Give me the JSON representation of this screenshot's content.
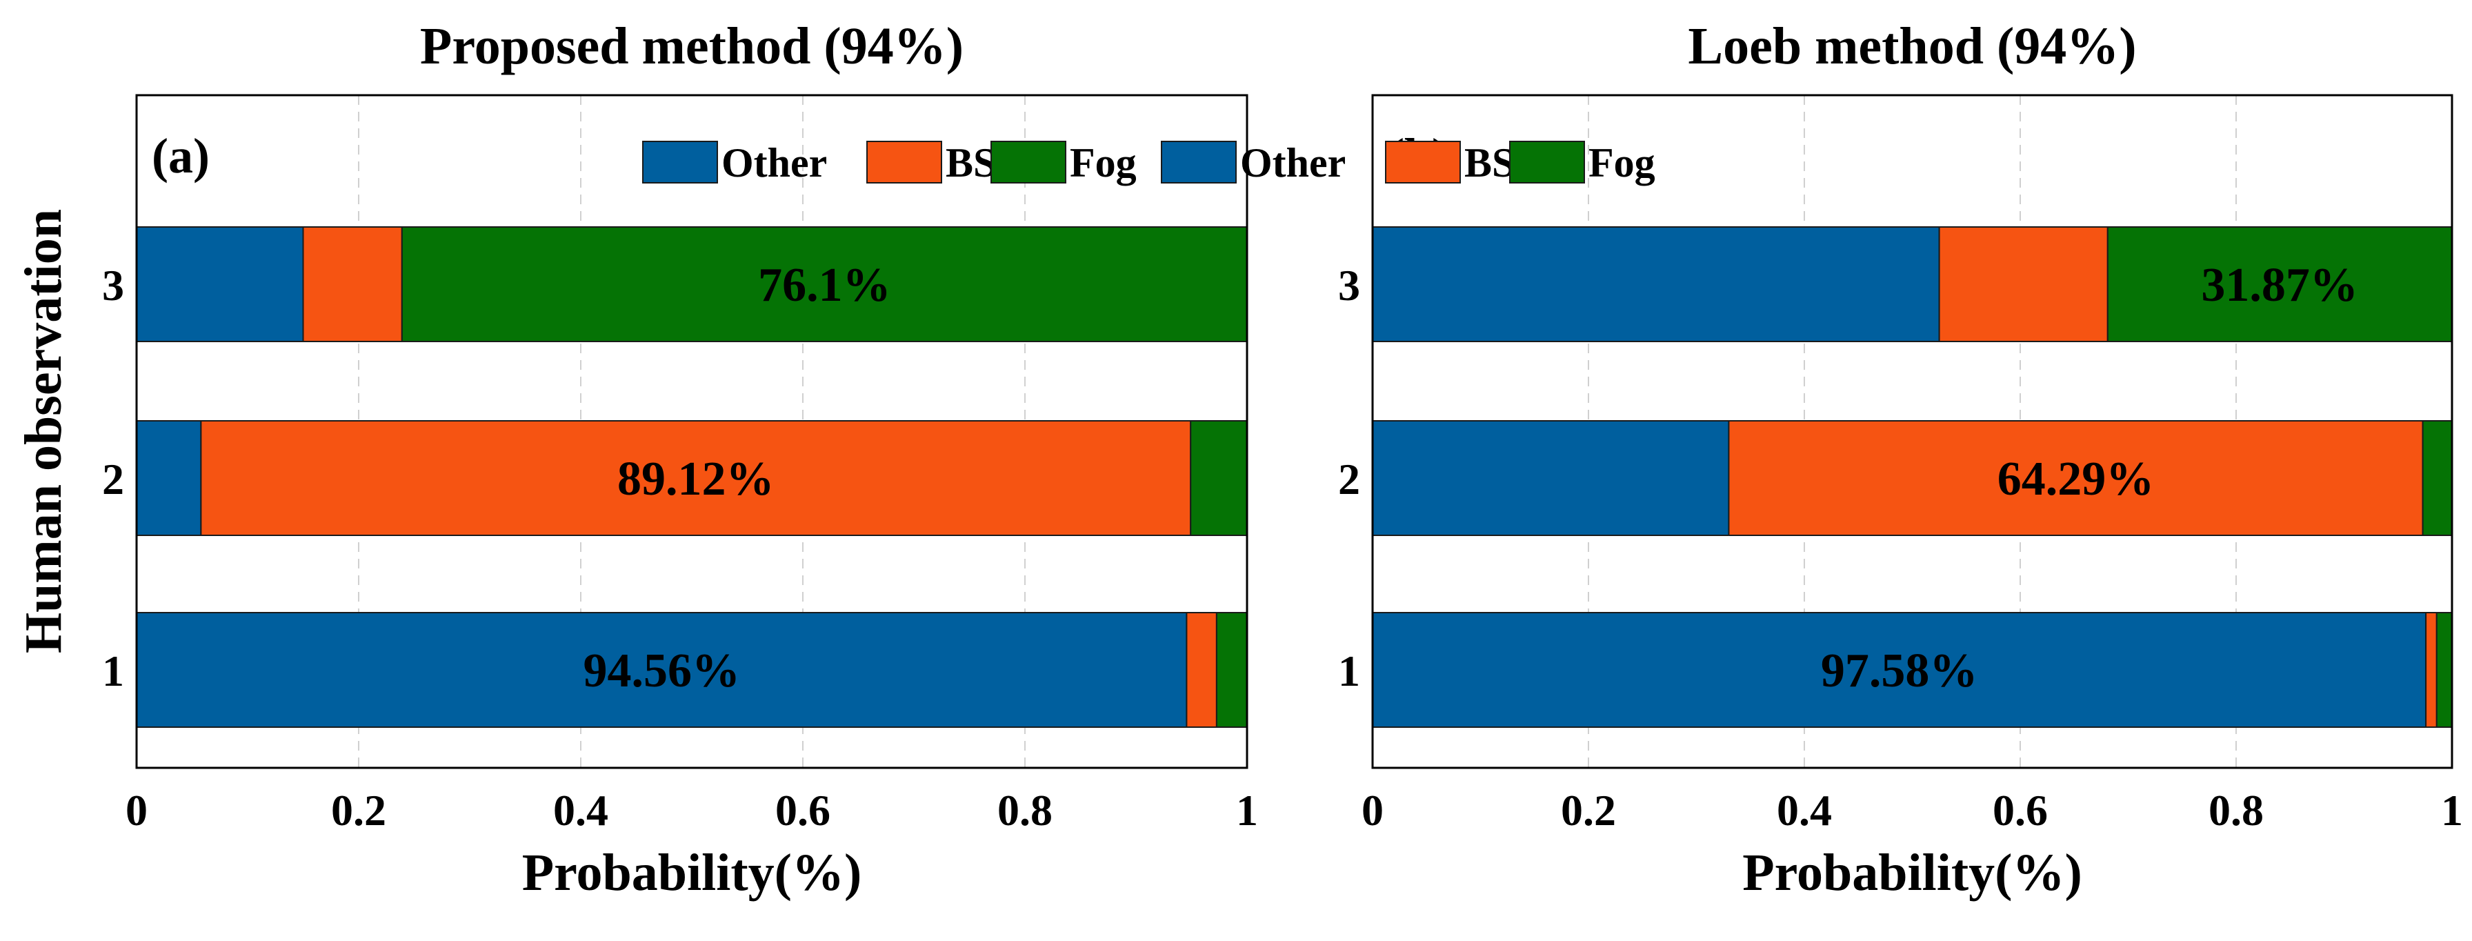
{
  "colors": {
    "Other": "#005F9E",
    "BS": "#F65412",
    "Fog": "#057305"
  },
  "chart_data": [
    {
      "type": "bar",
      "orientation": "horizontal",
      "stacked": true,
      "panel_label": "(a)",
      "title": "Proposed method (94%)",
      "xlabel": "Probability(%)",
      "ylabel": "Human observation",
      "xlim": [
        0,
        1
      ],
      "x_ticks": [
        "0",
        "0.2",
        "0.4",
        "0.6",
        "0.8",
        "1"
      ],
      "categories": [
        "1",
        "2",
        "3"
      ],
      "legend": {
        "entries": [
          "Other",
          "BS",
          "Fog"
        ],
        "placement": "top-right"
      },
      "grid": true,
      "series": [
        {
          "name": "Other",
          "values": [
            0.9456,
            0.058,
            0.15
          ]
        },
        {
          "name": "BS",
          "values": [
            0.027,
            0.8912,
            0.089
          ]
        },
        {
          "name": "Fog",
          "values": [
            0.0274,
            0.0508,
            0.761
          ]
        }
      ],
      "data_labels": [
        {
          "category": "1",
          "series": "Other",
          "text": "94.56%"
        },
        {
          "category": "2",
          "series": "BS",
          "text": "89.12%"
        },
        {
          "category": "3",
          "series": "Fog",
          "text": "76.1%"
        }
      ]
    },
    {
      "type": "bar",
      "orientation": "horizontal",
      "stacked": true,
      "panel_label": "(b)",
      "title": "Loeb method (94%)",
      "xlabel": "Probability(%)",
      "ylabel": "",
      "xlim": [
        0,
        1
      ],
      "x_ticks": [
        "0",
        "0.2",
        "0.4",
        "0.6",
        "0.8",
        "1"
      ],
      "categories": [
        "1",
        "2",
        "3"
      ],
      "legend": {
        "entries": [
          "Other",
          "BS",
          "Fog"
        ],
        "placement": "top-right"
      },
      "grid": true,
      "series": [
        {
          "name": "Other",
          "values": [
            0.9758,
            0.33,
            0.525
          ]
        },
        {
          "name": "BS",
          "values": [
            0.01,
            0.6429,
            0.156
          ]
        },
        {
          "name": "Fog",
          "values": [
            0.0142,
            0.0271,
            0.3187
          ]
        }
      ],
      "data_labels": [
        {
          "category": "1",
          "series": "Other",
          "text": "97.58%"
        },
        {
          "category": "2",
          "series": "BS",
          "text": "64.29%"
        },
        {
          "category": "3",
          "series": "Fog",
          "text": "31.87%"
        }
      ]
    }
  ]
}
